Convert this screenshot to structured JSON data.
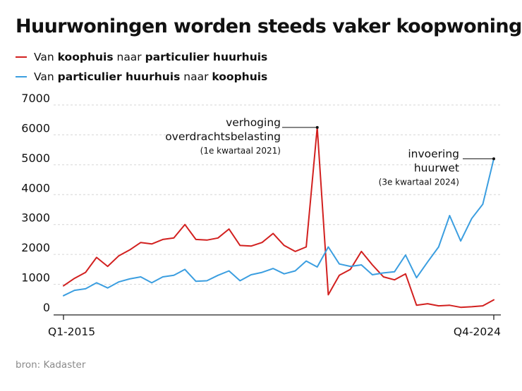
{
  "title": "Huurwoningen worden steeds vaker koopwoningen",
  "legend": [
    {
      "parts": [
        [
          "Van ",
          false
        ],
        [
          "koophuis",
          true
        ],
        [
          " naar ",
          false
        ],
        [
          "particulier huurhuis",
          true
        ]
      ],
      "color": "#d2201f"
    },
    {
      "parts": [
        [
          "Van ",
          false
        ],
        [
          "particulier huurhuis",
          true
        ],
        [
          " naar ",
          false
        ],
        [
          "koophuis",
          true
        ]
      ],
      "color": "#3b9ee0"
    }
  ],
  "source": "bron: Kadaster",
  "chart_data": {
    "type": "line",
    "title": "Huurwoningen worden steeds vaker koopwoningen",
    "xlabel": "",
    "ylabel": "",
    "ylim": [
      0,
      7000
    ],
    "yticks": [
      0,
      1000,
      2000,
      3000,
      4000,
      5000,
      6000,
      7000
    ],
    "xtick_labels": [
      {
        "index": 0,
        "label": "Q1-2015"
      },
      {
        "index": 39,
        "label": "Q4-2024"
      }
    ],
    "x": [
      "Q1-2015",
      "Q2-2015",
      "Q3-2015",
      "Q4-2015",
      "Q1-2016",
      "Q2-2016",
      "Q3-2016",
      "Q4-2016",
      "Q1-2017",
      "Q2-2017",
      "Q3-2017",
      "Q4-2017",
      "Q1-2018",
      "Q2-2018",
      "Q3-2018",
      "Q4-2018",
      "Q1-2019",
      "Q2-2019",
      "Q3-2019",
      "Q4-2019",
      "Q1-2020",
      "Q2-2020",
      "Q3-2020",
      "Q4-2020",
      "Q1-2021",
      "Q2-2021",
      "Q3-2021",
      "Q4-2021",
      "Q1-2022",
      "Q2-2022",
      "Q3-2022",
      "Q4-2022",
      "Q1-2023",
      "Q2-2023",
      "Q3-2023",
      "Q4-2023",
      "Q1-2024",
      "Q2-2024",
      "Q3-2024",
      "Q4-2024"
    ],
    "series": [
      {
        "name": "Van koophuis naar particulier huurhuis",
        "color": "#d2201f",
        "values": [
          950,
          1200,
          1400,
          1900,
          1600,
          1950,
          2150,
          2400,
          2350,
          2500,
          2550,
          3000,
          2500,
          2480,
          2550,
          2850,
          2300,
          2280,
          2400,
          2700,
          2300,
          2100,
          2250,
          6250,
          650,
          1300,
          1500,
          2100,
          1650,
          1250,
          1150,
          1350,
          300,
          350,
          280,
          300,
          230,
          250,
          280,
          480
        ]
      },
      {
        "name": "Van particulier huurhuis naar koophuis",
        "color": "#3b9ee0",
        "values": [
          620,
          800,
          850,
          1050,
          880,
          1080,
          1180,
          1250,
          1050,
          1250,
          1300,
          1500,
          1100,
          1120,
          1300,
          1450,
          1120,
          1320,
          1400,
          1530,
          1350,
          1450,
          1780,
          1580,
          2250,
          1680,
          1600,
          1650,
          1320,
          1380,
          1420,
          1980,
          1220,
          1750,
          2250,
          3300,
          2450,
          3200,
          3680,
          5200
        ]
      }
    ],
    "annotations": [
      {
        "index": 23,
        "series": 0,
        "value": 6250,
        "lines": [
          "verhoging",
          "overdrachtsbelasting"
        ],
        "note": "(1e kwartaal 2021)"
      },
      {
        "index": 39,
        "series": 1,
        "value": 5200,
        "lines": [
          "invoering",
          "huurwet"
        ],
        "note": "(3e kwartaal 2024)"
      }
    ]
  }
}
